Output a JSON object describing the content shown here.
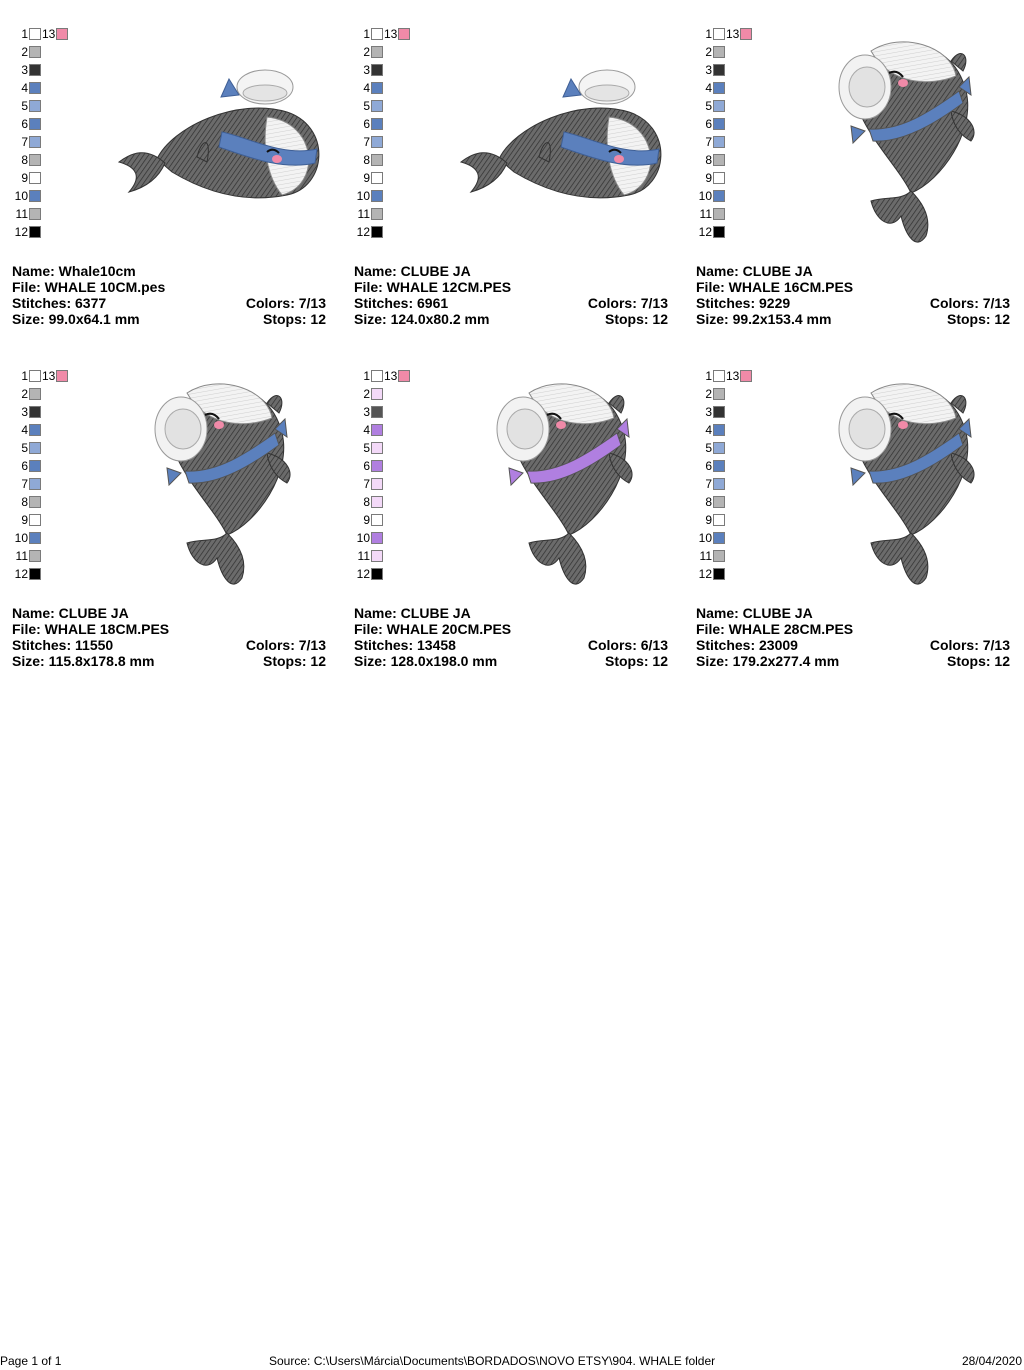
{
  "designs": [
    {
      "name": "Name: Whale10cm",
      "file": "File: WHALE 10CM.pes",
      "stitches": "Stitches: 6377",
      "colors": "Colors: 7/13",
      "size": "Size: 99.0x64.1 mm",
      "stops": "Stops: 12",
      "orientation": "horizontal",
      "accent": "#5b80bd",
      "palette": [
        "#ffffff",
        "#b4b4b4",
        "#333333",
        "#5b80bd",
        "#8fa9d6",
        "#5b80bd",
        "#8fa9d6",
        "#b4b4b4",
        "#ffffff",
        "#5b80bd",
        "#b4b4b4",
        "#000000",
        "#f08aa8"
      ]
    },
    {
      "name": "Name: CLUBE JA",
      "file": "File: WHALE 12CM.PES",
      "stitches": "Stitches: 6961",
      "colors": "Colors: 7/13",
      "size": "Size: 124.0x80.2 mm",
      "stops": "Stops: 12",
      "orientation": "horizontal",
      "accent": "#5b80bd",
      "palette": [
        "#ffffff",
        "#b4b4b4",
        "#333333",
        "#5b80bd",
        "#8fa9d6",
        "#5b80bd",
        "#8fa9d6",
        "#b4b4b4",
        "#ffffff",
        "#5b80bd",
        "#b4b4b4",
        "#000000",
        "#f08aa8"
      ]
    },
    {
      "name": "Name: CLUBE JA",
      "file": "File: WHALE 16CM.PES",
      "stitches": "Stitches: 9229",
      "colors": "Colors: 7/13",
      "size": "Size: 99.2x153.4 mm",
      "stops": "Stops: 12",
      "orientation": "vertical",
      "accent": "#5b80bd",
      "palette": [
        "#ffffff",
        "#b4b4b4",
        "#333333",
        "#5b80bd",
        "#8fa9d6",
        "#5b80bd",
        "#8fa9d6",
        "#b4b4b4",
        "#ffffff",
        "#5b80bd",
        "#b4b4b4",
        "#000000",
        "#f08aa8"
      ]
    },
    {
      "name": "Name: CLUBE JA",
      "file": "File: WHALE 18CM.PES",
      "stitches": "Stitches: 11550",
      "colors": "Colors: 7/13",
      "size": "Size: 115.8x178.8 mm",
      "stops": "Stops: 12",
      "orientation": "vertical",
      "accent": "#5b80bd",
      "palette": [
        "#ffffff",
        "#b4b4b4",
        "#333333",
        "#5b80bd",
        "#8fa9d6",
        "#5b80bd",
        "#8fa9d6",
        "#b4b4b4",
        "#ffffff",
        "#5b80bd",
        "#b4b4b4",
        "#000000",
        "#f08aa8"
      ]
    },
    {
      "name": "Name: CLUBE JA",
      "file": "File: WHALE 20CM.PES",
      "stitches": "Stitches: 13458",
      "colors": "Colors: 6/13",
      "size": "Size: 128.0x198.0 mm",
      "stops": "Stops: 12",
      "orientation": "vertical",
      "accent": "#b07fe0",
      "palette": [
        "#ffffff",
        "#f3d9f8",
        "#555555",
        "#b07fe0",
        "#f3d9f8",
        "#b07fe0",
        "#f3d9f8",
        "#f3d9f8",
        "#ffffff",
        "#b07fe0",
        "#f3d9f8",
        "#000000",
        "#f08aa8"
      ]
    },
    {
      "name": "Name: CLUBE JA",
      "file": "File: WHALE 28CM.PES",
      "stitches": "Stitches: 23009",
      "colors": "Colors: 7/13",
      "size": "Size: 179.2x277.4 mm",
      "stops": "Stops: 12",
      "orientation": "vertical",
      "accent": "#5b80bd",
      "palette": [
        "#ffffff",
        "#b4b4b4",
        "#333333",
        "#5b80bd",
        "#8fa9d6",
        "#5b80bd",
        "#8fa9d6",
        "#b4b4b4",
        "#ffffff",
        "#5b80bd",
        "#b4b4b4",
        "#000000",
        "#f08aa8"
      ]
    }
  ],
  "footer": {
    "page": "Page 1 of 1",
    "source": "Source: C:\\Users\\Márcia\\Documents\\BORDADOS\\NOVO ETSY\\904. WHALE folder",
    "date": "28/04/2020"
  }
}
